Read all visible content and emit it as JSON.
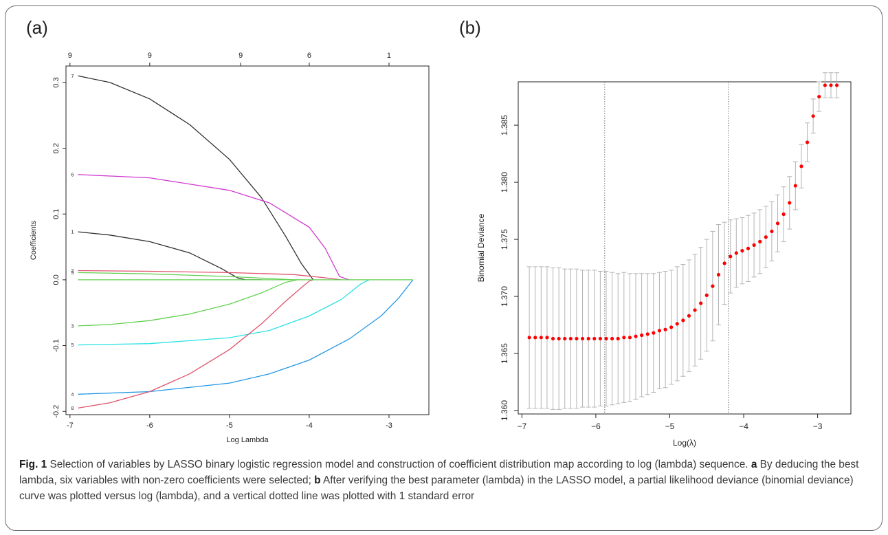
{
  "figure": {
    "panel_a_letter": "(a)",
    "panel_b_letter": "(b)"
  },
  "caption": {
    "label": "Fig. 1",
    "text_1": " Selection of variables by LASSO binary logistic regression model and construction of coefficient distribution map according to log (lambda) sequence. ",
    "mark_a": "a",
    "text_2": " By deducing the best lambda, six variables with non-zero coefficients were selected; ",
    "mark_b": "b",
    "text_3": " After verifying the best parameter (lambda) in the LASSO model, a partial likelihood deviance (binomial deviance) curve was plotted versus log (lambda), and a vertical dotted line was plotted with 1 standard error"
  },
  "chart_data": [
    {
      "type": "line",
      "panel": "(a)",
      "xlabel": "Log Lambda",
      "ylabel": "Coefficients",
      "xlim": [
        -7.05,
        -2.5
      ],
      "ylim": [
        -0.205,
        0.325
      ],
      "xticks": [
        -7,
        -6,
        -5,
        -4,
        -3
      ],
      "yticks": [
        -0.2,
        -0.1,
        0.0,
        0.1,
        0.2,
        0.3
      ],
      "top_axis": {
        "positions": [
          -7,
          -6,
          -4.86,
          -4.0,
          -3.0
        ],
        "labels": [
          "9",
          "9",
          "9",
          "6",
          "1"
        ]
      },
      "grid": false,
      "series": [
        {
          "name": "7",
          "color": "#303030",
          "x": [
            -6.9,
            -6.5,
            -6.0,
            -5.5,
            -5.0,
            -4.6,
            -4.3,
            -4.1,
            -3.95
          ],
          "y": [
            0.31,
            0.3,
            0.275,
            0.236,
            0.183,
            0.125,
            0.067,
            0.025,
            0.0
          ]
        },
        {
          "name": "6",
          "color": "#d13ad1",
          "x": [
            -6.9,
            -6.0,
            -5.0,
            -4.5,
            -4.0,
            -3.8,
            -3.62,
            -3.5
          ],
          "y": [
            0.16,
            0.155,
            0.136,
            0.117,
            0.08,
            0.048,
            0.005,
            0.0
          ]
        },
        {
          "name": "1",
          "color": "#303030",
          "x": [
            -6.9,
            -6.5,
            -6.0,
            -5.5,
            -5.1,
            -4.9,
            -4.8,
            -4.6
          ],
          "y": [
            0.073,
            0.068,
            0.058,
            0.041,
            0.017,
            0.003,
            0.0,
            0.0
          ]
        },
        {
          "name": "2",
          "color": "#df536b",
          "x": [
            -6.9,
            -6.0,
            -5.0,
            -4.2,
            -3.8,
            -3.6
          ],
          "y": [
            0.014,
            0.013,
            0.011,
            0.008,
            0.003,
            0.0
          ]
        },
        {
          "name": "9",
          "color": "#61d04f",
          "x": [
            -6.9,
            -6.0,
            -5.0,
            -4.5,
            -4.2,
            -4.1
          ],
          "y": [
            0.011,
            0.009,
            0.005,
            0.002,
            0.0,
            0.0
          ]
        },
        {
          "name": "3",
          "color": "#61d04f",
          "x": [
            -6.9,
            -6.5,
            -6.0,
            -5.5,
            -5.0,
            -4.6,
            -4.3,
            -4.15
          ],
          "y": [
            -0.07,
            -0.068,
            -0.062,
            -0.052,
            -0.037,
            -0.02,
            -0.004,
            0.0
          ]
        },
        {
          "name": "5",
          "color": "#28e2e5",
          "x": [
            -6.9,
            -6.0,
            -5.0,
            -4.5,
            -4.0,
            -3.6,
            -3.35,
            -3.25
          ],
          "y": [
            -0.099,
            -0.097,
            -0.088,
            -0.077,
            -0.055,
            -0.03,
            -0.006,
            0.0
          ]
        },
        {
          "name": "4",
          "color": "#2297e6",
          "x": [
            -6.9,
            -6.0,
            -5.0,
            -4.5,
            -4.0,
            -3.5,
            -3.1,
            -2.88,
            -2.7
          ],
          "y": [
            -0.174,
            -0.17,
            -0.157,
            -0.143,
            -0.122,
            -0.09,
            -0.055,
            -0.028,
            0.0
          ]
        },
        {
          "name": "8",
          "color": "#df536b",
          "x": [
            -6.9,
            -6.5,
            -6.0,
            -5.5,
            -5.0,
            -4.6,
            -4.3,
            -4.1,
            -4.0,
            -3.95
          ],
          "y": [
            -0.195,
            -0.187,
            -0.17,
            -0.143,
            -0.106,
            -0.067,
            -0.033,
            -0.012,
            -0.002,
            0.0
          ]
        }
      ]
    },
    {
      "type": "scatter",
      "panel": "(b)",
      "xlabel": "Log(λ)",
      "ylabel": "Binomial Deviance",
      "xlim": [
        -7.05,
        -2.55
      ],
      "ylim": [
        1.3597,
        1.3888
      ],
      "xticks": [
        -7,
        -6,
        -5,
        -4,
        -3
      ],
      "yticks": [
        1.36,
        1.365,
        1.37,
        1.375,
        1.38,
        1.385
      ],
      "ytick_labels": [
        "1.360",
        "1.365",
        "1.370",
        "1.375",
        "1.380",
        "1.385"
      ],
      "vlines": [
        -5.88,
        -4.21
      ],
      "grid": false,
      "point_color": "#ff0000",
      "errorbar_color": "#b3b3b3",
      "x": [
        -6.9,
        -6.82,
        -6.74,
        -6.66,
        -6.58,
        -6.5,
        -6.42,
        -6.34,
        -6.26,
        -6.18,
        -6.1,
        -6.02,
        -5.94,
        -5.86,
        -5.78,
        -5.7,
        -5.62,
        -5.54,
        -5.46,
        -5.38,
        -5.3,
        -5.22,
        -5.14,
        -5.06,
        -4.98,
        -4.9,
        -4.82,
        -4.74,
        -4.66,
        -4.58,
        -4.5,
        -4.42,
        -4.34,
        -4.26,
        -4.18,
        -4.1,
        -4.02,
        -3.94,
        -3.86,
        -3.78,
        -3.7,
        -3.62,
        -3.54,
        -3.46,
        -3.38,
        -3.3,
        -3.22,
        -3.14,
        -3.06,
        -2.98,
        -2.9,
        -2.82,
        -2.74
      ],
      "y": [
        1.3664,
        1.3664,
        1.3664,
        1.3664,
        1.3663,
        1.3663,
        1.3663,
        1.3663,
        1.3663,
        1.3663,
        1.3663,
        1.3663,
        1.3663,
        1.3663,
        1.3663,
        1.3663,
        1.3664,
        1.3664,
        1.3665,
        1.3666,
        1.3667,
        1.3668,
        1.367,
        1.3671,
        1.3673,
        1.3676,
        1.3679,
        1.3683,
        1.3688,
        1.3694,
        1.3701,
        1.3709,
        1.3719,
        1.3729,
        1.3735,
        1.3738,
        1.374,
        1.3742,
        1.3745,
        1.3748,
        1.3752,
        1.3757,
        1.3764,
        1.3772,
        1.3782,
        1.3797,
        1.3814,
        1.3835,
        1.3858,
        1.3875,
        1.3885,
        1.3885,
        1.3885
      ],
      "yerr": [
        0.0062,
        0.0062,
        0.0062,
        0.0062,
        0.0062,
        0.0062,
        0.0061,
        0.0061,
        0.0061,
        0.006,
        0.006,
        0.006,
        0.0059,
        0.0059,
        0.0058,
        0.0057,
        0.0057,
        0.0056,
        0.0055,
        0.0054,
        0.0053,
        0.0052,
        0.0051,
        0.0051,
        0.005,
        0.005,
        0.0049,
        0.0049,
        0.0049,
        0.0049,
        0.0049,
        0.0048,
        0.0044,
        0.0036,
        0.0032,
        0.003,
        0.0029,
        0.0029,
        0.0028,
        0.0028,
        0.0027,
        0.0026,
        0.0025,
        0.0024,
        0.0023,
        0.0021,
        0.0019,
        0.0017,
        0.0015,
        0.0013,
        0.0011,
        0.0011,
        0.0011
      ]
    }
  ]
}
